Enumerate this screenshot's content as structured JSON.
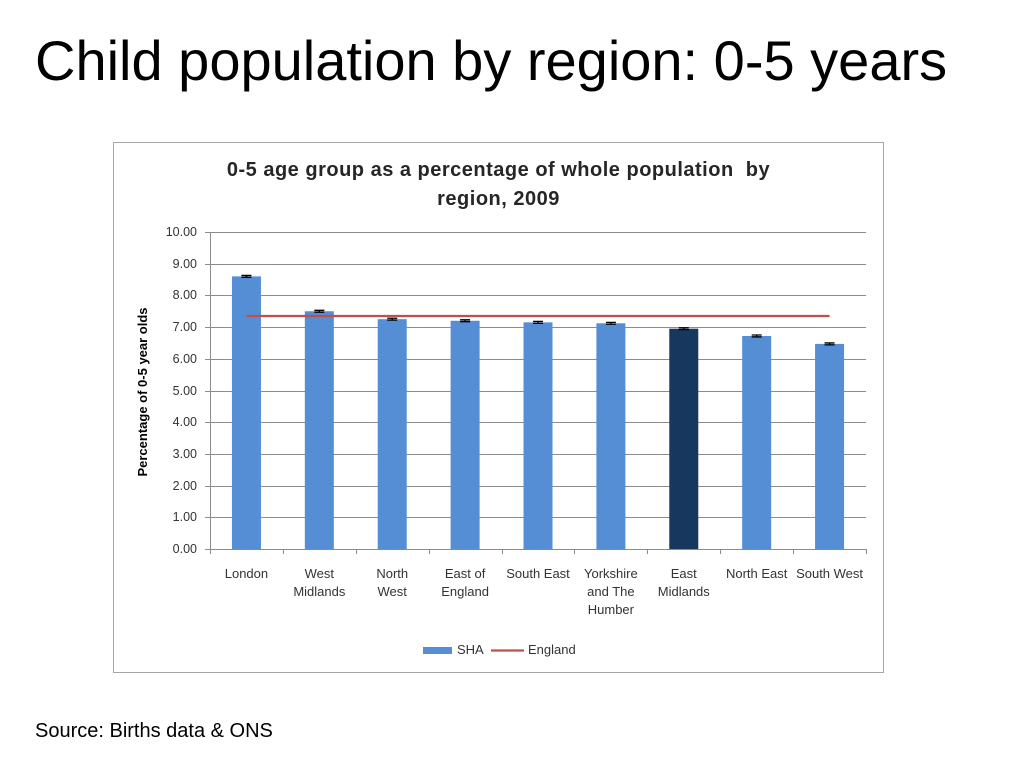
{
  "slide": {
    "title": "Child population by region: 0-5 years",
    "source": "Source: Births data & ONS"
  },
  "chart_data": {
    "type": "bar",
    "title": "0-5 age group as a percentage of whole population  by\nregion, 2009",
    "ylabel": "Percentage of 0-5 year olds",
    "categories": [
      "London",
      "West\nMidlands",
      "North\nWest",
      "East of\nEngland",
      "South East",
      "Yorkshire\nand The\nHumber",
      "East\nMidlands",
      "North East",
      "South West"
    ],
    "series": [
      {
        "name": "SHA",
        "type": "bar",
        "color": "#558ED5",
        "values": [
          8.6,
          7.5,
          7.25,
          7.2,
          7.15,
          7.12,
          6.95,
          6.72,
          6.47
        ],
        "errors": [
          0.03,
          0.03,
          0.03,
          0.03,
          0.03,
          0.03,
          0.03,
          0.03,
          0.03
        ]
      },
      {
        "name": "England",
        "type": "line",
        "color": "#C0504D",
        "values": [
          7.35,
          7.35,
          7.35,
          7.35,
          7.35,
          7.35,
          7.35,
          7.35,
          7.35
        ]
      }
    ],
    "highlight": {
      "index": 6,
      "color": "#17375E"
    },
    "ylim": [
      0,
      10
    ],
    "yticks": [
      0,
      1,
      2,
      3,
      4,
      5,
      6,
      7,
      8,
      9,
      10
    ],
    "ytick_labels": [
      "0.00",
      "1.00",
      "2.00",
      "3.00",
      "4.00",
      "5.00",
      "6.00",
      "7.00",
      "8.00",
      "9.00",
      "10.00"
    ],
    "grid": true,
    "legend": "bottom"
  }
}
